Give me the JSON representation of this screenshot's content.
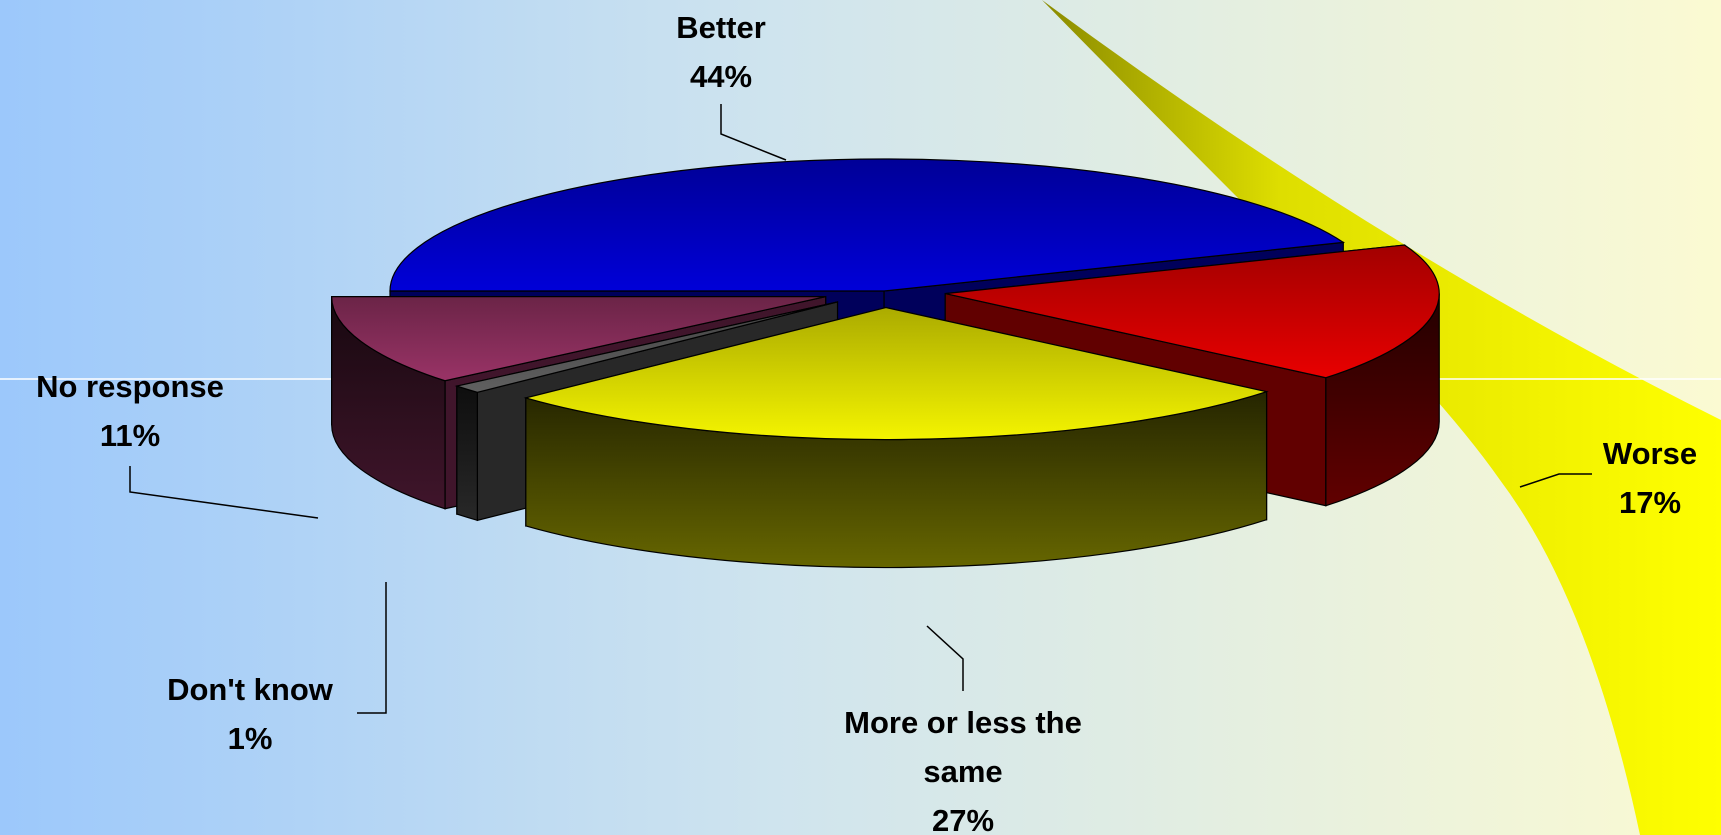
{
  "chart_data": {
    "type": "pie3d",
    "categories": [
      "Better",
      "Worse",
      "More or less the same",
      "Don't know",
      "No response"
    ],
    "values": [
      44,
      17,
      27,
      1,
      11
    ],
    "value_labels": [
      "44%",
      "17%",
      "27%",
      "1%",
      "11%"
    ],
    "colors": [
      "#0000d8",
      "#e80000",
      "#f4f400",
      "#606060",
      "#993366"
    ]
  }
}
